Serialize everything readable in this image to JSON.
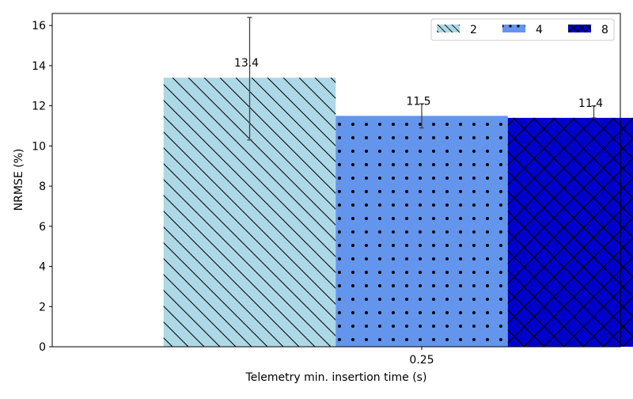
{
  "chart_data": {
    "type": "bar",
    "title": "",
    "xlabel": "Telemetry min. insertion time (s)",
    "ylabel": "NRMSE (%)",
    "categories": [
      "0.25"
    ],
    "ylim": [
      0,
      16.6
    ],
    "yticks": [
      0,
      2,
      4,
      6,
      8,
      10,
      12,
      14,
      16
    ],
    "grid": false,
    "legend_position": "top-right",
    "series": [
      {
        "name": "2",
        "values": [
          13.4
        ],
        "error": [
          [
            10.3,
            16.4
          ]
        ],
        "value_label": "13.4",
        "color": "#add8e6",
        "hatch": "diagonal"
      },
      {
        "name": "4",
        "values": [
          11.5
        ],
        "error": [
          [
            10.9,
            12.1
          ]
        ],
        "value_label": "11.5",
        "color": "#6495ed",
        "hatch": "dots"
      },
      {
        "name": "8",
        "values": [
          11.4
        ],
        "error": [
          [
            11.4,
            12.0
          ]
        ],
        "value_label": "11.4",
        "color": "#0000cd",
        "hatch": "crosshatch"
      }
    ]
  }
}
